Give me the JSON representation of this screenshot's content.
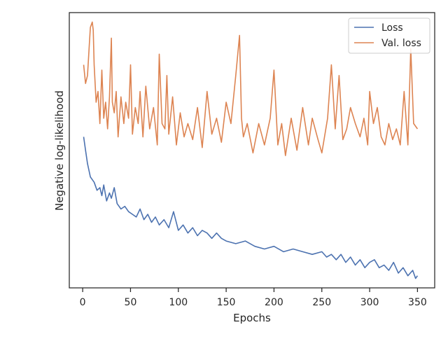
{
  "chart_data": {
    "type": "line",
    "title": "",
    "xlabel": "Epochs",
    "ylabel": "Negative log-likelihood",
    "xlim": [
      -14,
      368
    ],
    "ylim": [
      0,
      100
    ],
    "x_ticks": [
      0,
      50,
      100,
      150,
      200,
      250,
      300,
      350
    ],
    "x_tick_labels": [
      "0",
      "50",
      "100",
      "150",
      "200",
      "250",
      "300",
      "350"
    ],
    "y_ticks": [],
    "grid": false,
    "legend_position": "top-right",
    "series": [
      {
        "name": "Loss",
        "color": "#4c72b0",
        "x": [
          1,
          3,
          5,
          8,
          12,
          15,
          18,
          20,
          22,
          25,
          28,
          30,
          33,
          36,
          40,
          44,
          48,
          52,
          56,
          60,
          64,
          68,
          72,
          76,
          80,
          85,
          90,
          95,
          100,
          105,
          110,
          115,
          120,
          125,
          130,
          135,
          140,
          145,
          150,
          160,
          170,
          180,
          190,
          200,
          210,
          220,
          230,
          240,
          250,
          255,
          260,
          265,
          270,
          275,
          280,
          285,
          290,
          295,
          300,
          305,
          310,
          315,
          320,
          325,
          330,
          335,
          340,
          345,
          348,
          350
        ],
        "values": [
          55,
          50,
          45,
          40,
          38,
          35,
          36,
          33,
          37,
          31,
          34,
          32,
          36,
          30,
          28,
          29,
          27,
          26,
          25,
          28,
          24,
          26,
          23,
          25,
          22,
          24,
          21,
          27,
          20,
          22,
          19,
          21,
          18,
          20,
          19,
          17,
          19,
          17,
          16,
          15,
          16,
          14,
          13,
          14,
          12,
          13,
          12,
          11,
          12,
          10,
          11,
          9,
          11,
          8,
          10,
          7,
          9,
          6,
          8,
          9,
          6,
          7,
          5,
          8,
          4,
          6,
          3,
          5,
          2,
          3
        ]
      },
      {
        "name": "Val. loss",
        "color": "#dd8452",
        "x": [
          1,
          3,
          5,
          7,
          8,
          10,
          11,
          12,
          14,
          16,
          18,
          20,
          22,
          24,
          26,
          28,
          30,
          31,
          33,
          35,
          37,
          40,
          43,
          45,
          48,
          50,
          52,
          55,
          58,
          60,
          63,
          66,
          70,
          74,
          78,
          80,
          83,
          86,
          88,
          90,
          94,
          98,
          102,
          106,
          110,
          115,
          120,
          125,
          130,
          135,
          140,
          145,
          150,
          155,
          160,
          164,
          166,
          168,
          172,
          178,
          184,
          190,
          196,
          200,
          204,
          208,
          212,
          218,
          224,
          230,
          236,
          240,
          246,
          250,
          256,
          260,
          264,
          268,
          272,
          276,
          280,
          285,
          290,
          294,
          298,
          300,
          304,
          308,
          312,
          316,
          320,
          324,
          328,
          332,
          336,
          340,
          343,
          346,
          350
        ],
        "values": [
          82,
          75,
          78,
          90,
          96,
          98,
          95,
          82,
          68,
          72,
          60,
          80,
          62,
          68,
          58,
          70,
          92,
          68,
          64,
          72,
          55,
          70,
          60,
          68,
          62,
          82,
          56,
          66,
          60,
          72,
          55,
          74,
          58,
          66,
          52,
          86,
          60,
          58,
          78,
          56,
          70,
          52,
          64,
          55,
          60,
          54,
          66,
          51,
          72,
          56,
          62,
          53,
          68,
          60,
          78,
          93,
          62,
          55,
          60,
          49,
          60,
          52,
          62,
          80,
          52,
          60,
          48,
          62,
          50,
          66,
          52,
          62,
          54,
          49,
          62,
          82,
          58,
          78,
          54,
          58,
          66,
          60,
          55,
          62,
          52,
          72,
          60,
          66,
          55,
          52,
          60,
          54,
          58,
          52,
          72,
          52,
          88,
          60,
          58
        ]
      }
    ]
  }
}
